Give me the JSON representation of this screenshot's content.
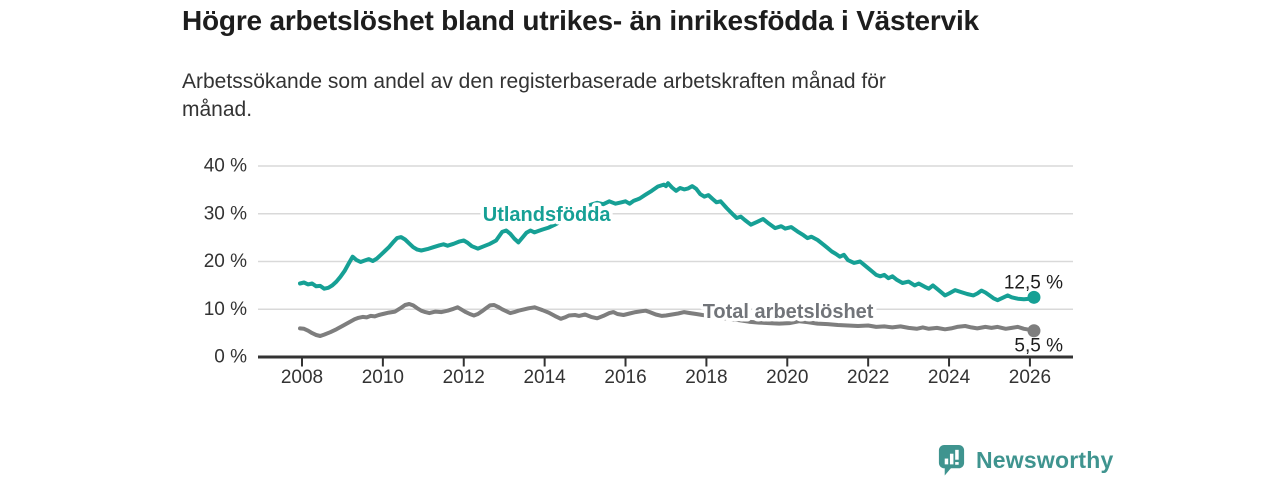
{
  "header": {
    "title": "Högre arbetslöshet bland utrikes- än inrikesfödda i Västervik",
    "subtitle": "Arbetssökande som andel av den registerbaserade arbetskraften månad för\nmånad."
  },
  "footer": {
    "brand": "Newsworthy",
    "brand_icon": "newsworthy-speech-bubble-bar-chart",
    "brand_color": "#3f948f"
  },
  "chart_data": {
    "type": "line",
    "x_unit": "decimal_year_monthly",
    "xlim": [
      2006.9,
      2027.1
    ],
    "ylim": [
      0,
      40
    ],
    "grid": "horizontal",
    "legend_position": "inline-labels",
    "axis_color": "#333333",
    "gridline_color": "#d9d9d9",
    "yticks": {
      "values": [
        0,
        10,
        20,
        30,
        40
      ],
      "labels": [
        "0 %",
        "10 %",
        "20 %",
        "30 %",
        "40 %"
      ]
    },
    "xticks": {
      "values": [
        2008,
        2010,
        2012,
        2014,
        2016,
        2018,
        2020,
        2022,
        2024,
        2026
      ],
      "labels": [
        "2008",
        "2010",
        "2012",
        "2014",
        "2016",
        "2018",
        "2020",
        "2022",
        "2024",
        "2026"
      ]
    },
    "series": [
      {
        "name": "Utlandsfödda",
        "color": "#16a095",
        "label_color": "#16a095",
        "label_pos": [
          2014.05,
          29.7
        ],
        "end_label": "12,5 %",
        "end_value": 12.5,
        "points": [
          [
            2007.95,
            15.4
          ],
          [
            2008.05,
            15.6
          ],
          [
            2008.15,
            15.2
          ],
          [
            2008.25,
            15.4
          ],
          [
            2008.35,
            14.8
          ],
          [
            2008.45,
            14.9
          ],
          [
            2008.55,
            14.3
          ],
          [
            2008.65,
            14.5
          ],
          [
            2008.75,
            15.0
          ],
          [
            2008.85,
            15.8
          ],
          [
            2008.95,
            16.8
          ],
          [
            2009.05,
            18.0
          ],
          [
            2009.15,
            19.5
          ],
          [
            2009.25,
            21.0
          ],
          [
            2009.35,
            20.3
          ],
          [
            2009.45,
            19.9
          ],
          [
            2009.55,
            20.2
          ],
          [
            2009.65,
            20.5
          ],
          [
            2009.75,
            20.1
          ],
          [
            2009.85,
            20.6
          ],
          [
            2009.95,
            21.4
          ],
          [
            2010.05,
            22.2
          ],
          [
            2010.15,
            23.0
          ],
          [
            2010.25,
            24.0
          ],
          [
            2010.35,
            24.9
          ],
          [
            2010.45,
            25.1
          ],
          [
            2010.55,
            24.6
          ],
          [
            2010.65,
            23.8
          ],
          [
            2010.75,
            23.0
          ],
          [
            2010.85,
            22.5
          ],
          [
            2010.95,
            22.3
          ],
          [
            2011.1,
            22.6
          ],
          [
            2011.25,
            23.0
          ],
          [
            2011.4,
            23.4
          ],
          [
            2011.5,
            23.6
          ],
          [
            2011.6,
            23.3
          ],
          [
            2011.75,
            23.7
          ],
          [
            2011.9,
            24.2
          ],
          [
            2012.0,
            24.4
          ],
          [
            2012.1,
            23.9
          ],
          [
            2012.2,
            23.2
          ],
          [
            2012.35,
            22.7
          ],
          [
            2012.5,
            23.2
          ],
          [
            2012.65,
            23.7
          ],
          [
            2012.8,
            24.4
          ],
          [
            2012.95,
            26.2
          ],
          [
            2013.05,
            26.5
          ],
          [
            2013.15,
            25.8
          ],
          [
            2013.25,
            24.8
          ],
          [
            2013.35,
            24.0
          ],
          [
            2013.45,
            25.0
          ],
          [
            2013.55,
            26.0
          ],
          [
            2013.65,
            26.5
          ],
          [
            2013.75,
            26.1
          ],
          [
            2013.85,
            26.4
          ],
          [
            2013.95,
            26.7
          ],
          [
            2014.1,
            27.1
          ],
          [
            2014.25,
            27.7
          ],
          [
            2014.4,
            28.4
          ],
          [
            2014.55,
            29.2
          ],
          [
            2014.7,
            30.0
          ],
          [
            2014.85,
            30.8
          ],
          [
            2015.0,
            31.4
          ],
          [
            2015.15,
            31.9
          ],
          [
            2015.3,
            32.3
          ],
          [
            2015.45,
            32.0
          ],
          [
            2015.6,
            32.6
          ],
          [
            2015.75,
            32.1
          ],
          [
            2015.9,
            32.4
          ],
          [
            2016.0,
            32.6
          ],
          [
            2016.1,
            32.1
          ],
          [
            2016.2,
            32.7
          ],
          [
            2016.35,
            33.2
          ],
          [
            2016.5,
            34.0
          ],
          [
            2016.65,
            34.8
          ],
          [
            2016.8,
            35.7
          ],
          [
            2016.95,
            36.1
          ],
          [
            2017.0,
            35.8
          ],
          [
            2017.05,
            36.4
          ],
          [
            2017.15,
            35.5
          ],
          [
            2017.25,
            34.8
          ],
          [
            2017.35,
            35.4
          ],
          [
            2017.45,
            35.1
          ],
          [
            2017.55,
            35.3
          ],
          [
            2017.65,
            35.8
          ],
          [
            2017.75,
            35.2
          ],
          [
            2017.85,
            34.1
          ],
          [
            2017.95,
            33.6
          ],
          [
            2018.05,
            33.9
          ],
          [
            2018.15,
            33.1
          ],
          [
            2018.25,
            32.4
          ],
          [
            2018.35,
            32.6
          ],
          [
            2018.5,
            31.2
          ],
          [
            2018.65,
            29.9
          ],
          [
            2018.75,
            29.1
          ],
          [
            2018.85,
            29.4
          ],
          [
            2018.95,
            28.7
          ],
          [
            2019.1,
            27.7
          ],
          [
            2019.25,
            28.3
          ],
          [
            2019.4,
            28.9
          ],
          [
            2019.55,
            27.9
          ],
          [
            2019.7,
            27.0
          ],
          [
            2019.85,
            27.4
          ],
          [
            2019.95,
            26.9
          ],
          [
            2020.1,
            27.2
          ],
          [
            2020.25,
            26.3
          ],
          [
            2020.4,
            25.5
          ],
          [
            2020.5,
            24.9
          ],
          [
            2020.6,
            25.2
          ],
          [
            2020.75,
            24.5
          ],
          [
            2020.9,
            23.5
          ],
          [
            2021.0,
            22.8
          ],
          [
            2021.1,
            22.1
          ],
          [
            2021.2,
            21.6
          ],
          [
            2021.3,
            21.0
          ],
          [
            2021.4,
            21.4
          ],
          [
            2021.5,
            20.3
          ],
          [
            2021.65,
            19.7
          ],
          [
            2021.8,
            20.0
          ],
          [
            2021.9,
            19.3
          ],
          [
            2022.0,
            18.6
          ],
          [
            2022.1,
            17.9
          ],
          [
            2022.2,
            17.2
          ],
          [
            2022.3,
            16.9
          ],
          [
            2022.4,
            17.2
          ],
          [
            2022.5,
            16.5
          ],
          [
            2022.6,
            16.9
          ],
          [
            2022.7,
            16.2
          ],
          [
            2022.85,
            15.5
          ],
          [
            2023.0,
            15.8
          ],
          [
            2023.15,
            15.0
          ],
          [
            2023.25,
            15.4
          ],
          [
            2023.4,
            14.7
          ],
          [
            2023.5,
            14.3
          ],
          [
            2023.6,
            15.0
          ],
          [
            2023.7,
            14.3
          ],
          [
            2023.8,
            13.6
          ],
          [
            2023.9,
            12.9
          ],
          [
            2024.0,
            13.3
          ],
          [
            2024.15,
            14.0
          ],
          [
            2024.3,
            13.6
          ],
          [
            2024.45,
            13.2
          ],
          [
            2024.6,
            12.9
          ],
          [
            2024.7,
            13.3
          ],
          [
            2024.8,
            13.9
          ],
          [
            2024.9,
            13.5
          ],
          [
            2025.0,
            12.9
          ],
          [
            2025.1,
            12.3
          ],
          [
            2025.2,
            11.9
          ],
          [
            2025.3,
            12.3
          ],
          [
            2025.45,
            12.9
          ],
          [
            2025.55,
            12.5
          ],
          [
            2025.7,
            12.2
          ],
          [
            2025.85,
            12.1
          ],
          [
            2026.0,
            12.2
          ],
          [
            2026.1,
            12.5
          ]
        ]
      },
      {
        "name": "Total arbetslöshet",
        "color": "#7e7e7e",
        "label_color": "#717479",
        "label_pos": [
          2020.02,
          9.4
        ],
        "end_label": "5,5 %",
        "end_value": 5.5,
        "points": [
          [
            2007.95,
            6.0
          ],
          [
            2008.05,
            5.9
          ],
          [
            2008.15,
            5.5
          ],
          [
            2008.25,
            5.0
          ],
          [
            2008.35,
            4.6
          ],
          [
            2008.45,
            4.4
          ],
          [
            2008.55,
            4.7
          ],
          [
            2008.7,
            5.2
          ],
          [
            2008.85,
            5.8
          ],
          [
            2009.0,
            6.5
          ],
          [
            2009.15,
            7.2
          ],
          [
            2009.3,
            7.9
          ],
          [
            2009.4,
            8.2
          ],
          [
            2009.5,
            8.4
          ],
          [
            2009.6,
            8.3
          ],
          [
            2009.7,
            8.6
          ],
          [
            2009.8,
            8.5
          ],
          [
            2009.9,
            8.8
          ],
          [
            2010.0,
            9.0
          ],
          [
            2010.15,
            9.3
          ],
          [
            2010.3,
            9.5
          ],
          [
            2010.45,
            10.3
          ],
          [
            2010.55,
            10.9
          ],
          [
            2010.65,
            11.1
          ],
          [
            2010.75,
            10.8
          ],
          [
            2010.85,
            10.2
          ],
          [
            2010.95,
            9.7
          ],
          [
            2011.05,
            9.4
          ],
          [
            2011.15,
            9.2
          ],
          [
            2011.3,
            9.5
          ],
          [
            2011.45,
            9.4
          ],
          [
            2011.6,
            9.7
          ],
          [
            2011.75,
            10.1
          ],
          [
            2011.85,
            10.4
          ],
          [
            2011.95,
            9.9
          ],
          [
            2012.05,
            9.4
          ],
          [
            2012.15,
            9.0
          ],
          [
            2012.25,
            8.7
          ],
          [
            2012.35,
            9.0
          ],
          [
            2012.45,
            9.6
          ],
          [
            2012.55,
            10.2
          ],
          [
            2012.65,
            10.8
          ],
          [
            2012.75,
            10.9
          ],
          [
            2012.85,
            10.5
          ],
          [
            2012.95,
            10.0
          ],
          [
            2013.05,
            9.6
          ],
          [
            2013.15,
            9.2
          ],
          [
            2013.25,
            9.4
          ],
          [
            2013.35,
            9.7
          ],
          [
            2013.5,
            10.0
          ],
          [
            2013.6,
            10.2
          ],
          [
            2013.75,
            10.4
          ],
          [
            2013.85,
            10.1
          ],
          [
            2013.95,
            9.8
          ],
          [
            2014.1,
            9.3
          ],
          [
            2014.25,
            8.6
          ],
          [
            2014.4,
            8.0
          ],
          [
            2014.5,
            8.3
          ],
          [
            2014.6,
            8.7
          ],
          [
            2014.75,
            8.8
          ],
          [
            2014.85,
            8.6
          ],
          [
            2015.0,
            8.9
          ],
          [
            2015.15,
            8.4
          ],
          [
            2015.3,
            8.1
          ],
          [
            2015.45,
            8.6
          ],
          [
            2015.6,
            9.2
          ],
          [
            2015.7,
            9.4
          ],
          [
            2015.8,
            9.0
          ],
          [
            2015.95,
            8.8
          ],
          [
            2016.1,
            9.1
          ],
          [
            2016.25,
            9.4
          ],
          [
            2016.4,
            9.6
          ],
          [
            2016.5,
            9.7
          ],
          [
            2016.6,
            9.4
          ],
          [
            2016.75,
            8.9
          ],
          [
            2016.9,
            8.6
          ],
          [
            2017.0,
            8.7
          ],
          [
            2017.15,
            8.9
          ],
          [
            2017.3,
            9.1
          ],
          [
            2017.45,
            9.4
          ],
          [
            2017.6,
            9.2
          ],
          [
            2017.75,
            9.0
          ],
          [
            2017.9,
            8.8
          ],
          [
            2018.1,
            8.6
          ],
          [
            2018.3,
            8.3
          ],
          [
            2018.55,
            8.0
          ],
          [
            2018.8,
            7.7
          ],
          [
            2019.05,
            7.4
          ],
          [
            2019.3,
            7.2
          ],
          [
            2019.55,
            7.1
          ],
          [
            2019.8,
            7.0
          ],
          [
            2020.05,
            7.1
          ],
          [
            2020.3,
            7.5
          ],
          [
            2020.5,
            7.3
          ],
          [
            2020.75,
            7.0
          ],
          [
            2021.0,
            6.9
          ],
          [
            2021.25,
            6.7
          ],
          [
            2021.5,
            6.6
          ],
          [
            2021.75,
            6.5
          ],
          [
            2022.0,
            6.6
          ],
          [
            2022.2,
            6.3
          ],
          [
            2022.4,
            6.4
          ],
          [
            2022.6,
            6.2
          ],
          [
            2022.8,
            6.4
          ],
          [
            2023.0,
            6.1
          ],
          [
            2023.2,
            5.9
          ],
          [
            2023.35,
            6.2
          ],
          [
            2023.5,
            5.9
          ],
          [
            2023.7,
            6.1
          ],
          [
            2023.9,
            5.8
          ],
          [
            2024.05,
            6.0
          ],
          [
            2024.2,
            6.3
          ],
          [
            2024.4,
            6.5
          ],
          [
            2024.55,
            6.2
          ],
          [
            2024.7,
            6.0
          ],
          [
            2024.9,
            6.3
          ],
          [
            2025.05,
            6.1
          ],
          [
            2025.2,
            6.3
          ],
          [
            2025.4,
            5.9
          ],
          [
            2025.55,
            6.1
          ],
          [
            2025.7,
            6.3
          ],
          [
            2025.85,
            5.9
          ],
          [
            2026.0,
            5.7
          ],
          [
            2026.1,
            5.5
          ]
        ]
      }
    ]
  }
}
